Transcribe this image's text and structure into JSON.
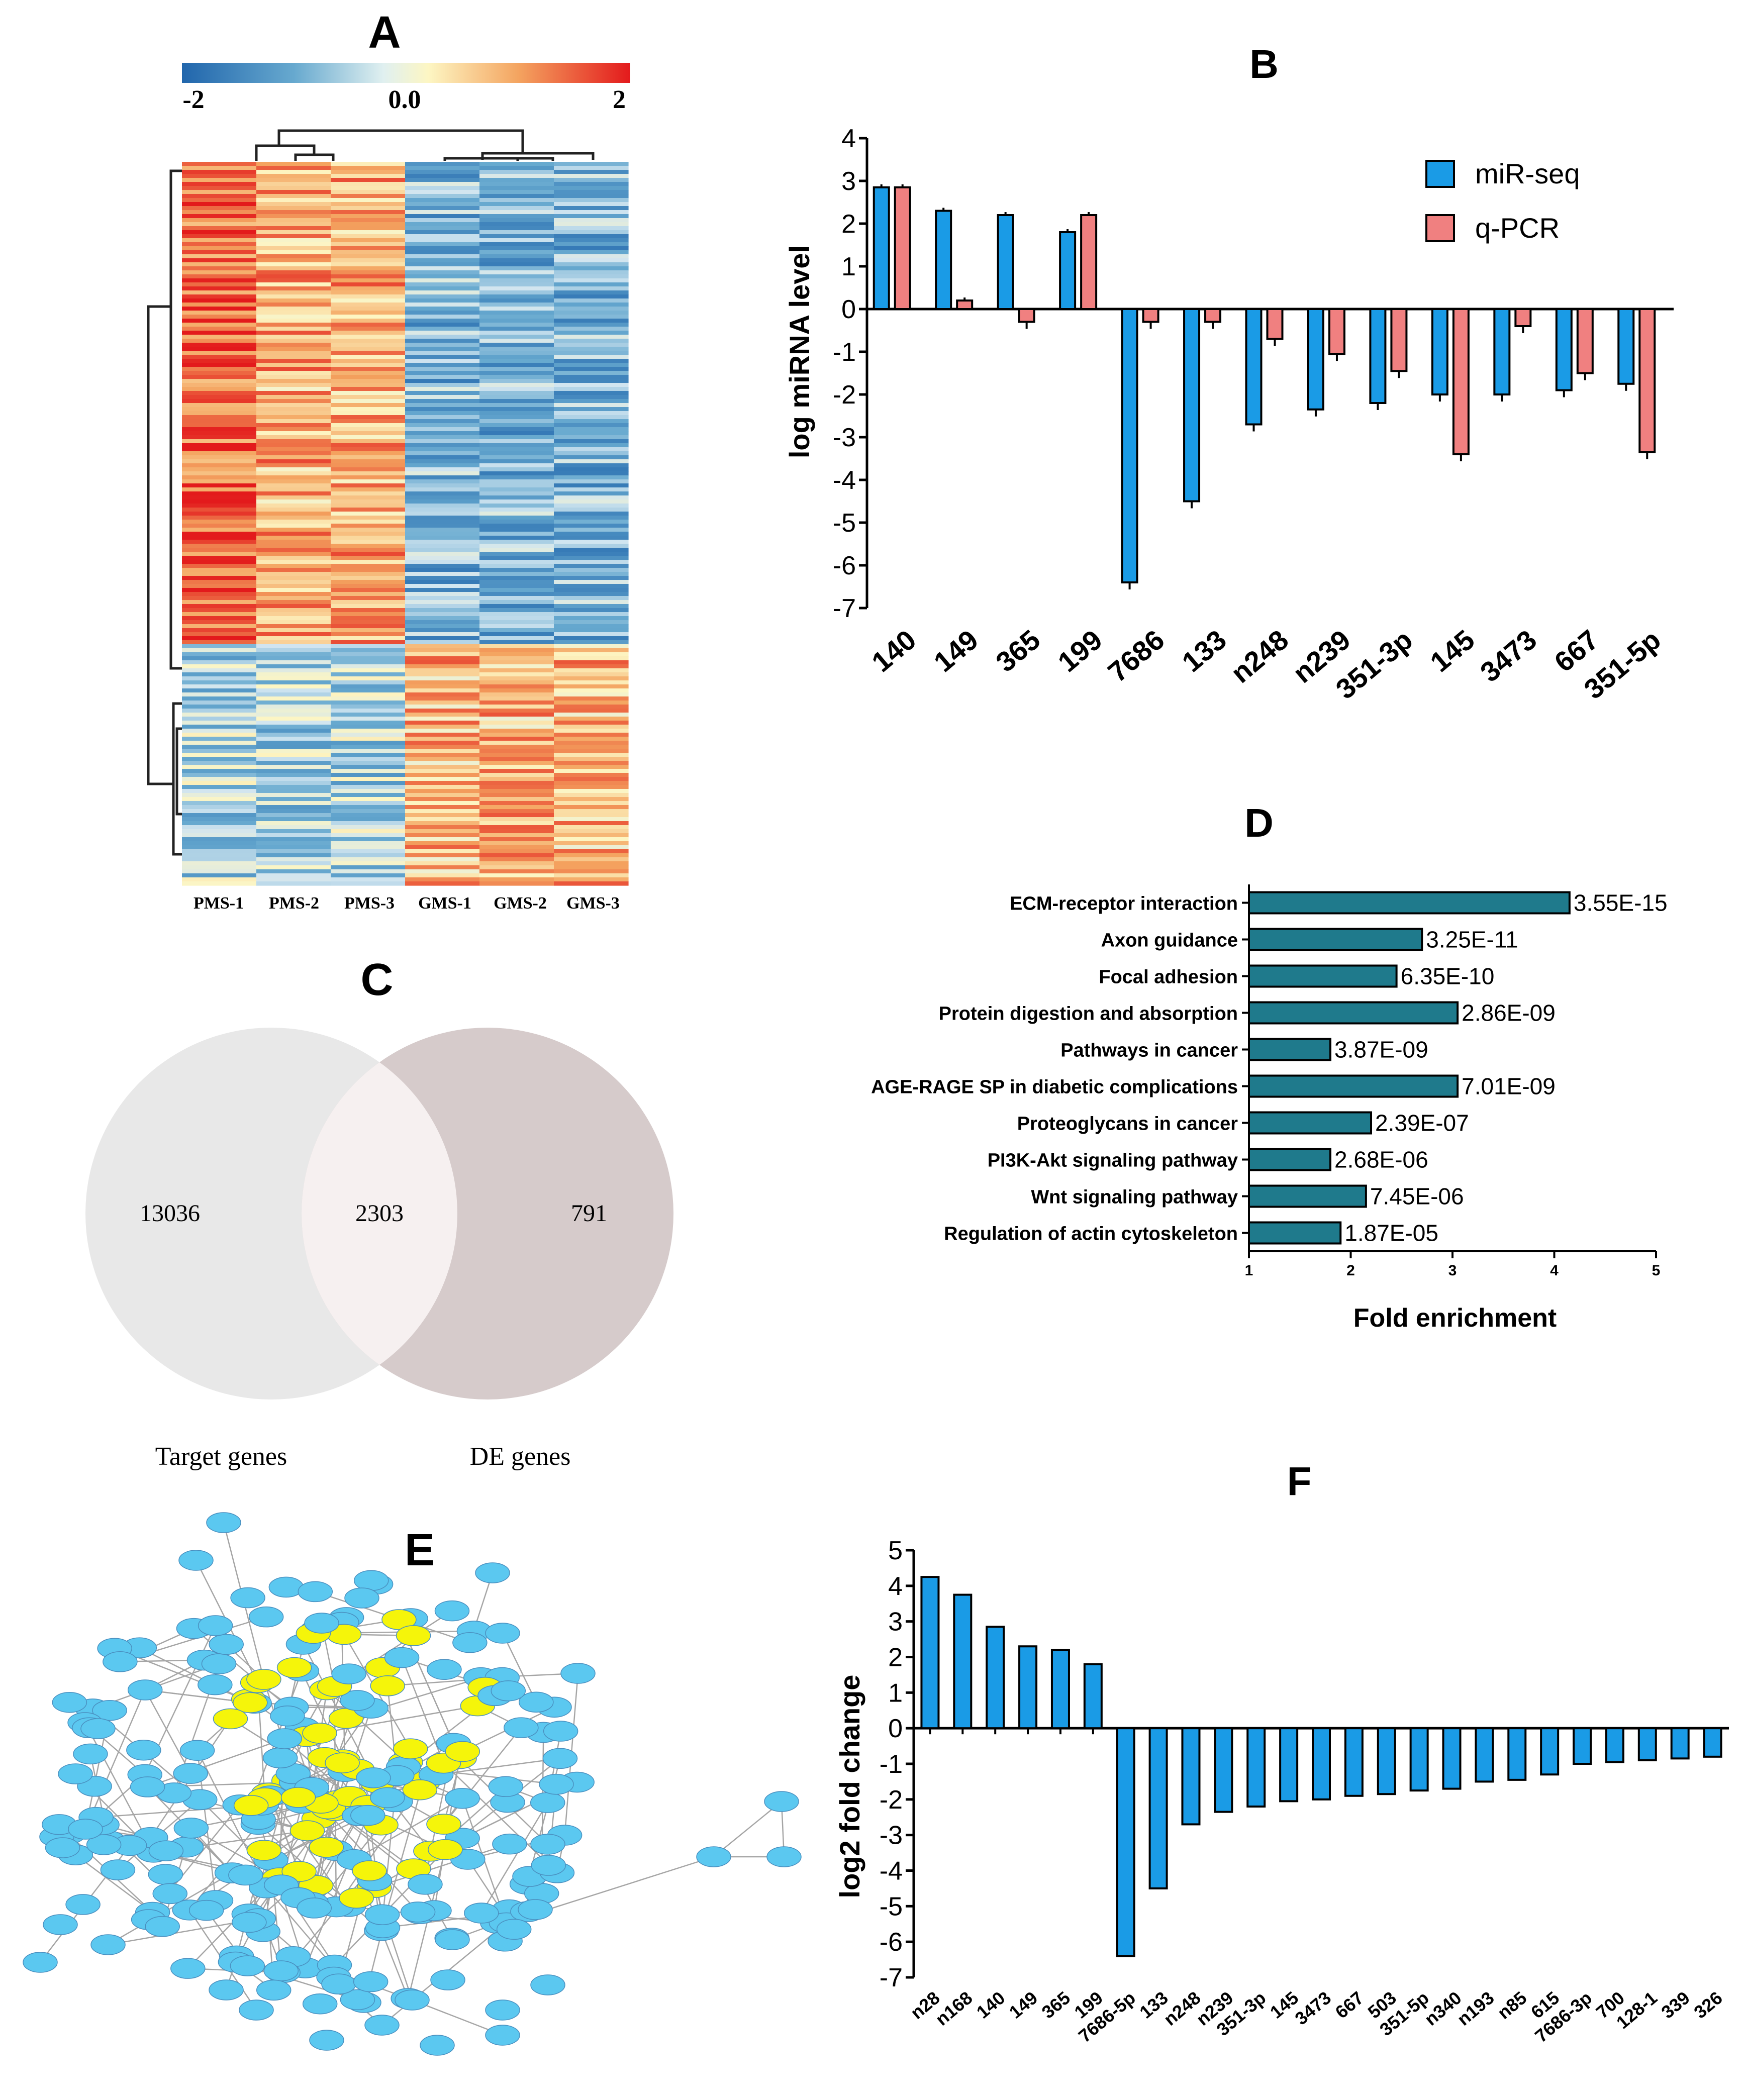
{
  "panelA": {
    "label": "A",
    "colorbar": {
      "min_label": "-2",
      "mid_label": "0.0",
      "max_label": "2",
      "colors": [
        "#2166ac",
        "#67a9cf",
        "#d1e5f0",
        "#fdf6c3",
        "#f4a460",
        "#e34a33",
        "#e31a1c"
      ]
    },
    "samples": [
      "PMS-1",
      "PMS-2",
      "PMS-3",
      "GMS-1",
      "GMS-2",
      "GMS-3"
    ]
  },
  "panelB": {
    "label": "B",
    "legend": [
      "miR-seq",
      "q-PCR"
    ],
    "colors": {
      "mirseq": "#1a9be6",
      "qpcr": "#f08080"
    },
    "chart_data": {
      "type": "bar",
      "title": "",
      "ylabel": "log miRNA level",
      "ylim": [
        -7,
        4
      ],
      "yticks": [
        "4",
        "3",
        "2",
        "1",
        "0",
        "-1",
        "-2",
        "-3",
        "-4",
        "-5",
        "-6",
        "-7"
      ],
      "categories": [
        "140",
        "149",
        "365",
        "199",
        "7686",
        "133",
        "n248",
        "n239",
        "351-3p",
        "145",
        "3473",
        "667",
        "351-5p"
      ],
      "series": [
        {
          "name": "miR-seq",
          "values": [
            2.85,
            2.3,
            2.2,
            1.8,
            -6.4,
            -4.5,
            -2.7,
            -2.35,
            -2.2,
            -2.0,
            -2.0,
            -1.9,
            -1.75
          ]
        },
        {
          "name": "q-PCR",
          "values": [
            2.85,
            0.2,
            -0.3,
            2.2,
            -0.3,
            -0.3,
            -0.7,
            -1.05,
            -1.45,
            -3.4,
            -0.4,
            -1.5,
            -3.35
          ]
        }
      ]
    }
  },
  "panelC": {
    "label": "C",
    "left_only": "13036",
    "overlap": "2303",
    "right_only": "791",
    "left_label": "Target genes",
    "right_label": "DE genes",
    "colors": {
      "left": "#e8e8e8",
      "right": "#d6cbcb",
      "overlap": "#f6f0f0"
    }
  },
  "panelD": {
    "label": "D",
    "bar_color": "#1f7a8c",
    "chart_data": {
      "type": "bar",
      "orientation": "horizontal",
      "xlabel": "Fold enrichment",
      "xlim": [
        1,
        5
      ],
      "xticks": [
        "1",
        "2",
        "3",
        "4",
        "5"
      ],
      "categories": [
        "ECM-receptor interaction",
        "Axon guidance",
        "Focal adhesion",
        "Protein digestion and absorption",
        "Pathways in cancer",
        "AGE-RAGE SP in diabetic complications",
        "Proteoglycans in cancer",
        "PI3K-Akt signaling pathway",
        "Wnt signaling pathway",
        "Regulation of actin cytoskeleton"
      ],
      "values": [
        4.15,
        2.7,
        2.45,
        3.05,
        1.8,
        3.05,
        2.2,
        1.8,
        2.15,
        1.9
      ],
      "annotations": [
        "3.55E-15",
        "3.25E-11",
        "6.35E-10",
        "2.86E-09",
        "3.87E-09",
        "7.01E-09",
        "2.39E-07",
        "2.68E-06",
        "7.45E-06",
        "1.87E-05"
      ]
    }
  },
  "panelE": {
    "label": "E",
    "colors": {
      "node": "#5bc8f0",
      "hub": "#f5f50a",
      "edge": "#888888"
    }
  },
  "panelF": {
    "label": "F",
    "bar_color": "#1a9be6",
    "chart_data": {
      "type": "bar",
      "ylabel": "log2 fold change",
      "ylim": [
        -7,
        5
      ],
      "yticks": [
        "5",
        "4",
        "3",
        "2",
        "1",
        "0",
        "-1",
        "-2",
        "-3",
        "-4",
        "-5",
        "-6",
        "-7"
      ],
      "categories": [
        "n28",
        "n168",
        "140",
        "149",
        "365",
        "199",
        "7686-5p",
        "133",
        "n248",
        "n239",
        "351-3p",
        "145",
        "3473",
        "667",
        "503",
        "351-5p",
        "n340",
        "n193",
        "n85",
        "615",
        "7686-3p",
        "700",
        "128-1",
        "339",
        "326"
      ],
      "values": [
        4.25,
        3.75,
        2.85,
        2.3,
        2.2,
        1.8,
        -6.4,
        -4.5,
        -2.7,
        -2.35,
        -2.2,
        -2.05,
        -2.0,
        -1.9,
        -1.85,
        -1.75,
        -1.7,
        -1.5,
        -1.45,
        -1.3,
        -1.0,
        -0.95,
        -0.9,
        -0.85,
        -0.8
      ]
    }
  }
}
